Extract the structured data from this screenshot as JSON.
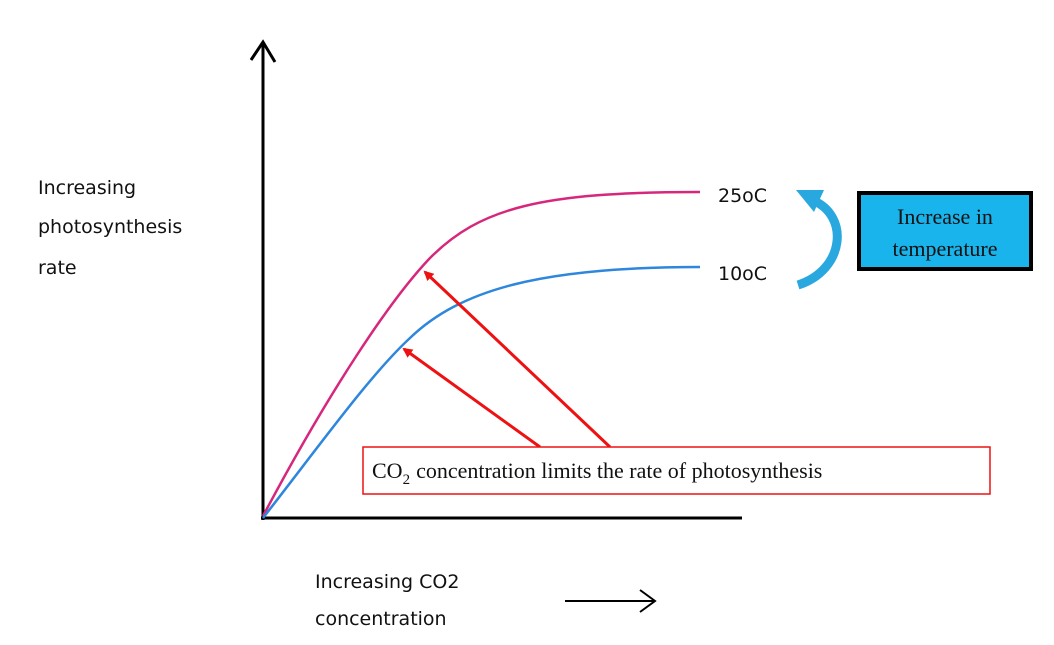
{
  "y_axis": {
    "lines": [
      "Increasing",
      "photosynthesis",
      "rate"
    ]
  },
  "x_axis": {
    "lines": [
      "Increasing CO2",
      "concentration"
    ]
  },
  "curves": [
    {
      "label": "25oC"
    },
    {
      "label": "10oC"
    }
  ],
  "temperature_box": {
    "lines": [
      "Increase in",
      "temperature"
    ]
  },
  "annotation": {
    "main": "CO",
    "subscript": "2",
    "rest": "concentration limits the rate of photosynthesis"
  }
}
